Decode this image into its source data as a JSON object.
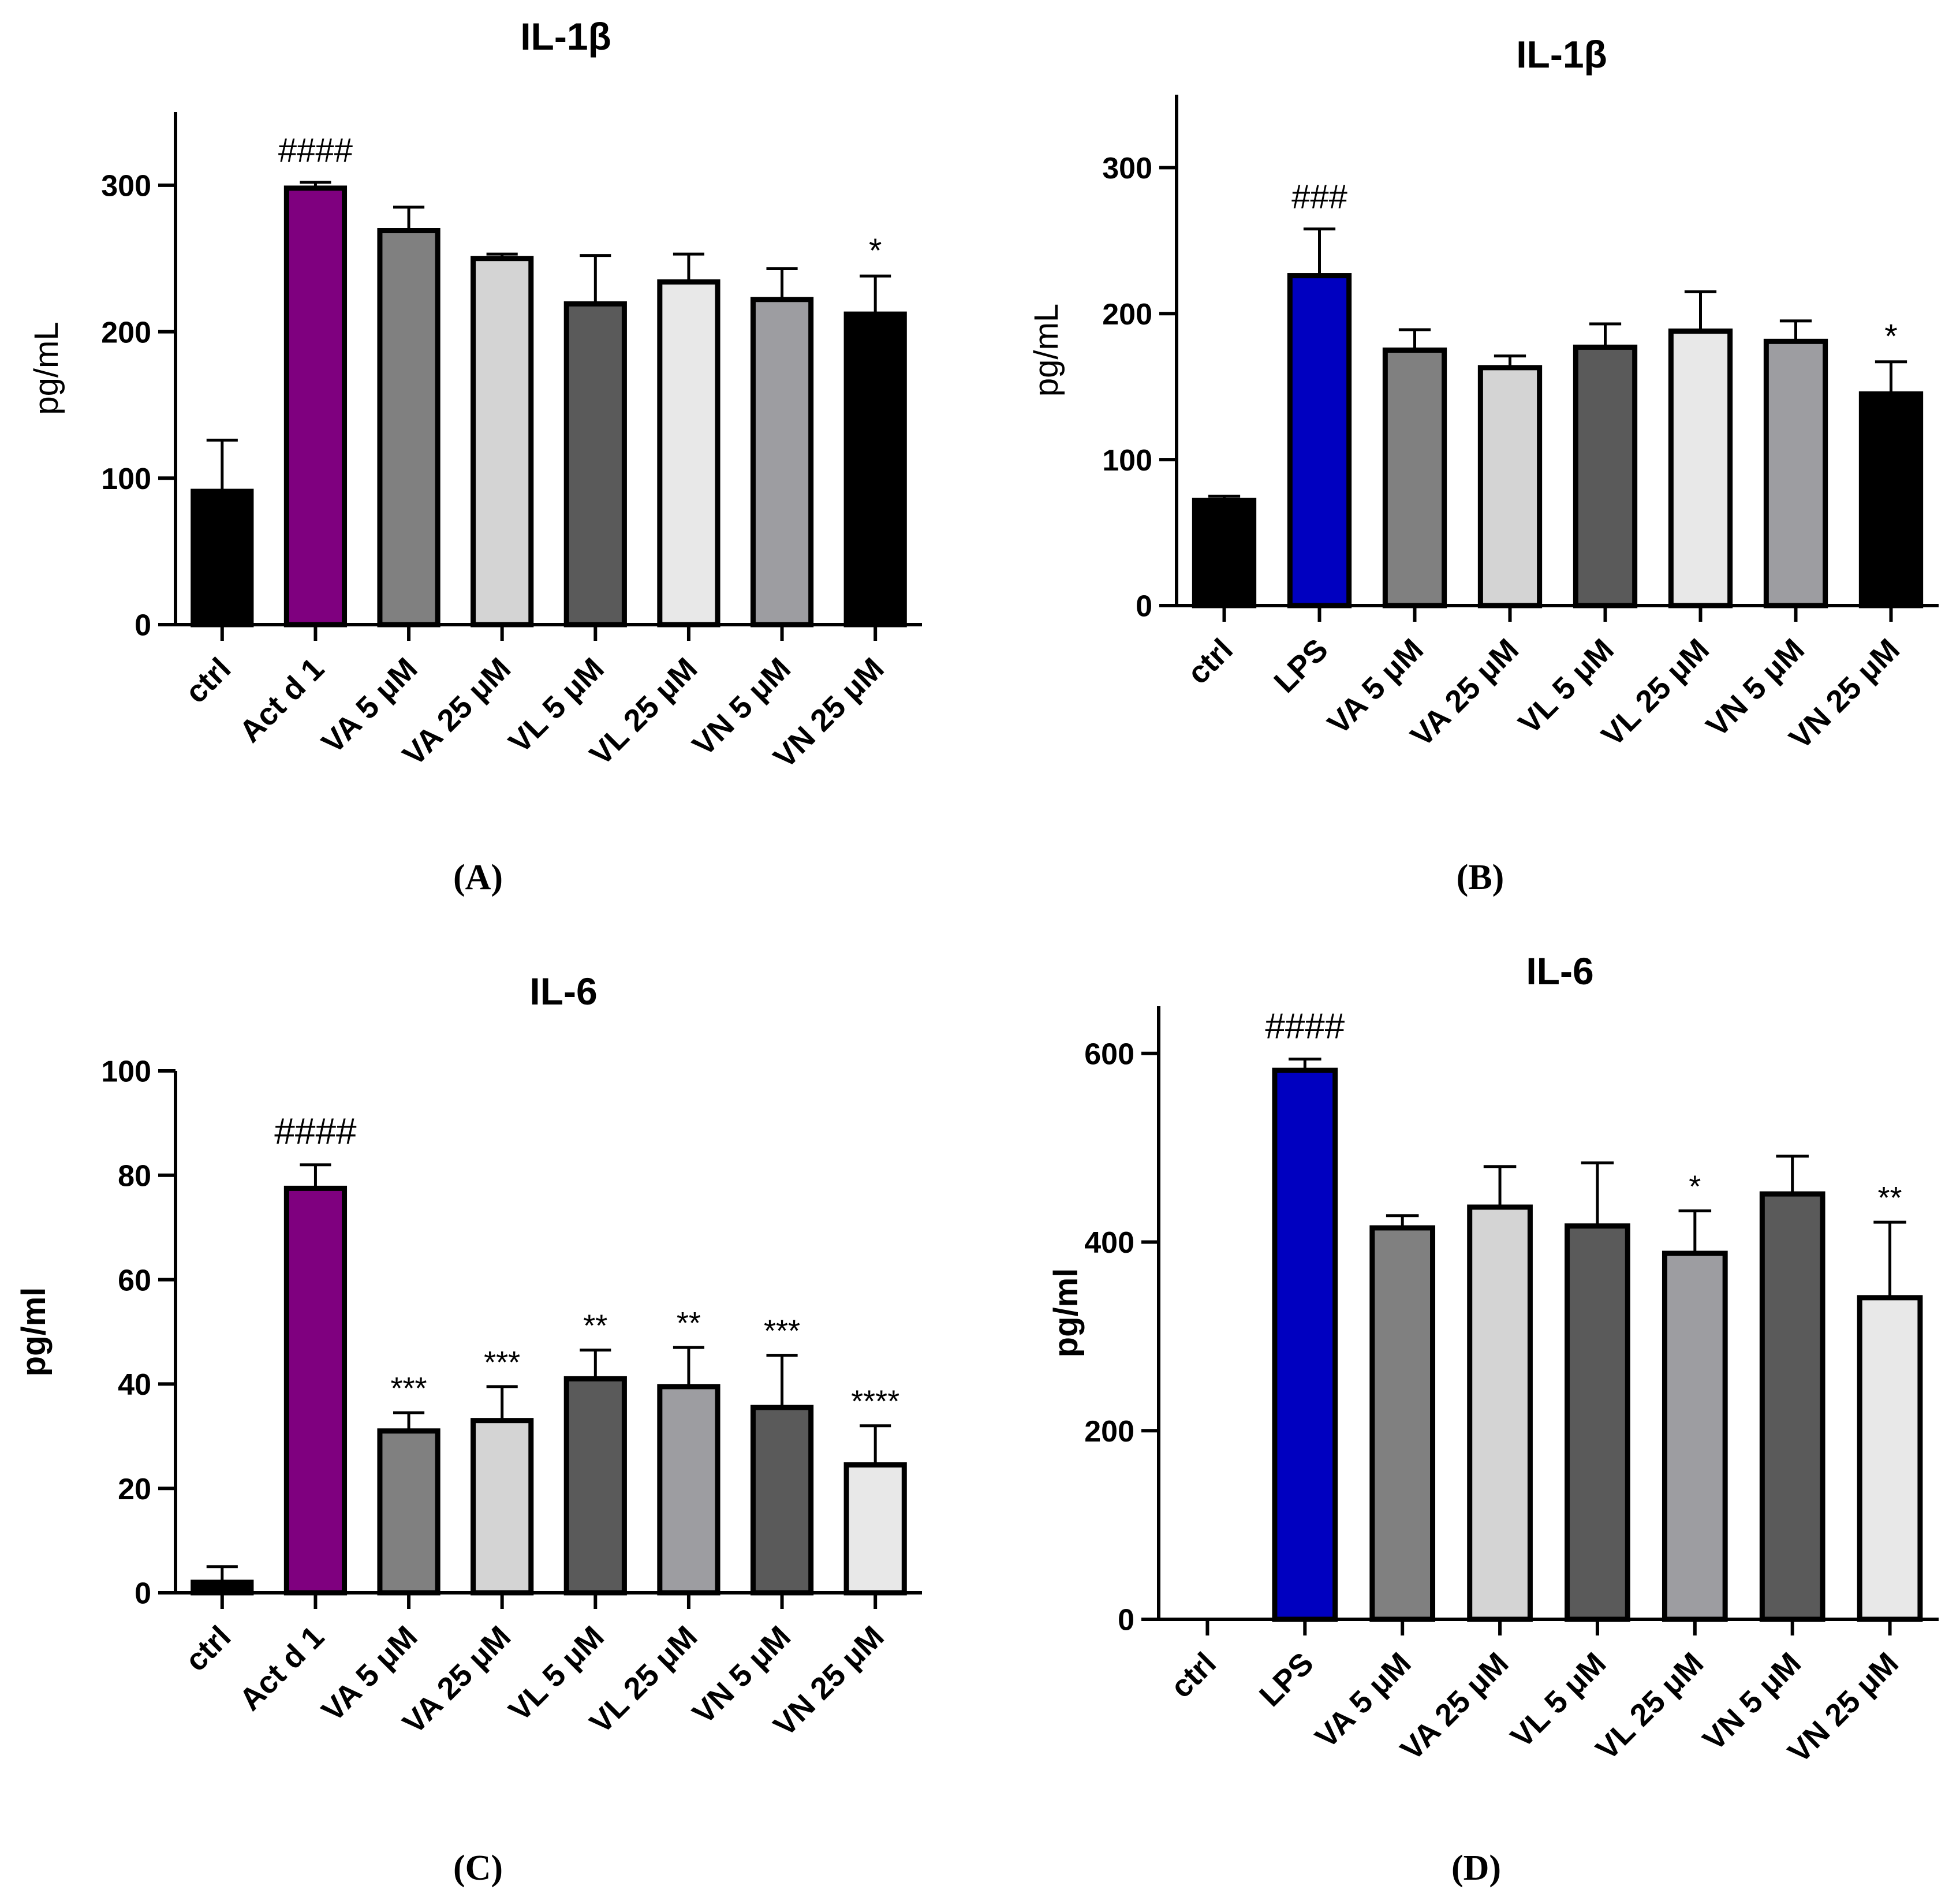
{
  "chart_data": [
    {
      "type": "bar",
      "panel_label": "(A)",
      "title": "IL-1β",
      "ylabel": "pg/mL",
      "xlabel": "",
      "ylim": [
        0,
        350
      ],
      "yticks": [
        0,
        100,
        200,
        300
      ],
      "grid": false,
      "categories": [
        "ctrl",
        "Act d 1",
        "VA 5 μM",
        "VA 25 μM",
        "VL 5 μM",
        "VL 25 μM",
        "VN 5 μM",
        "VN 25 μM"
      ],
      "values": [
        91,
        298,
        269,
        250,
        219,
        234,
        222,
        212
      ],
      "errors": [
        35,
        4,
        16,
        3,
        33,
        19,
        21,
        26
      ],
      "colors": [
        "#000000",
        "#7f007f",
        "#808080",
        "#d4d4d4",
        "#5a5a5a",
        "#e8e8e8",
        "#9d9da1",
        "#000000"
      ],
      "annotations": [
        "",
        "####",
        "",
        "",
        "",
        "",
        "",
        "*"
      ]
    },
    {
      "type": "bar",
      "panel_label": "(B)",
      "title": "IL-1β",
      "ylabel": "pg/mL",
      "xlabel": "",
      "ylim": [
        0,
        350
      ],
      "yticks": [
        0,
        100,
        200,
        300
      ],
      "grid": false,
      "categories": [
        "ctrl",
        "LPS",
        "VA 5 μM",
        "VA 25 μM",
        "VL 5 μM",
        "VL 25 μM",
        "VN 5 μM",
        "VN 25 μM"
      ],
      "values": [
        72,
        226,
        175,
        163,
        177,
        188,
        181,
        145
      ],
      "errors": [
        3,
        32,
        14,
        8,
        16,
        27,
        14,
        22
      ],
      "colors": [
        "#000000",
        "#0000c0",
        "#808080",
        "#d4d4d4",
        "#5a5a5a",
        "#e8e8e8",
        "#9d9da1",
        "#000000"
      ],
      "annotations": [
        "",
        "###",
        "",
        "",
        "",
        "",
        "",
        "*"
      ]
    },
    {
      "type": "bar",
      "panel_label": "(C)",
      "title": "IL-6",
      "ylabel": "pg/ml",
      "xlabel": "",
      "ylim": [
        0,
        100
      ],
      "yticks": [
        0,
        20,
        40,
        60,
        80,
        100
      ],
      "grid": false,
      "categories": [
        "ctrl",
        "Act d 1",
        "VA 5 μM",
        "VA 25 μM",
        "VL 5 μM",
        "VL 25 μM",
        "VN 5 μM",
        "VN 25 μM"
      ],
      "values": [
        2,
        77.5,
        31,
        33,
        41,
        39.5,
        35.5,
        24.5
      ],
      "errors": [
        3,
        4.5,
        3.5,
        6.5,
        5.5,
        7.5,
        10,
        7.5
      ],
      "colors": [
        "#000000",
        "#7f007f",
        "#808080",
        "#d4d4d4",
        "#5a5a5a",
        "#9d9da1",
        "#5a5a5a",
        "#e8e8e8"
      ],
      "annotations": [
        "",
        "####",
        "***",
        "***",
        "**",
        "**",
        "***",
        "****"
      ]
    },
    {
      "type": "bar",
      "panel_label": "(D)",
      "title": "IL-6",
      "ylabel": "pg/ml",
      "xlabel": "",
      "ylim": [
        0,
        650
      ],
      "yticks": [
        0,
        200,
        400,
        600
      ],
      "grid": false,
      "categories": [
        "ctrl",
        "LPS",
        "VA 5 μM",
        "VA 25 μM",
        "VL 5 μM",
        "VL 25 μM",
        "VN 5 μM",
        "VN 25 μM"
      ],
      "values": [
        0,
        582,
        415,
        437,
        417,
        388,
        451,
        341
      ],
      "errors": [
        0,
        12,
        13,
        43,
        67,
        45,
        40,
        80
      ],
      "colors": [
        "#000000",
        "#0000c0",
        "#808080",
        "#d4d4d4",
        "#5a5a5a",
        "#9d9da1",
        "#5a5a5a",
        "#e8e8e8"
      ],
      "annotations": [
        "",
        "####",
        "",
        "",
        "",
        "*",
        "",
        "**"
      ]
    }
  ]
}
